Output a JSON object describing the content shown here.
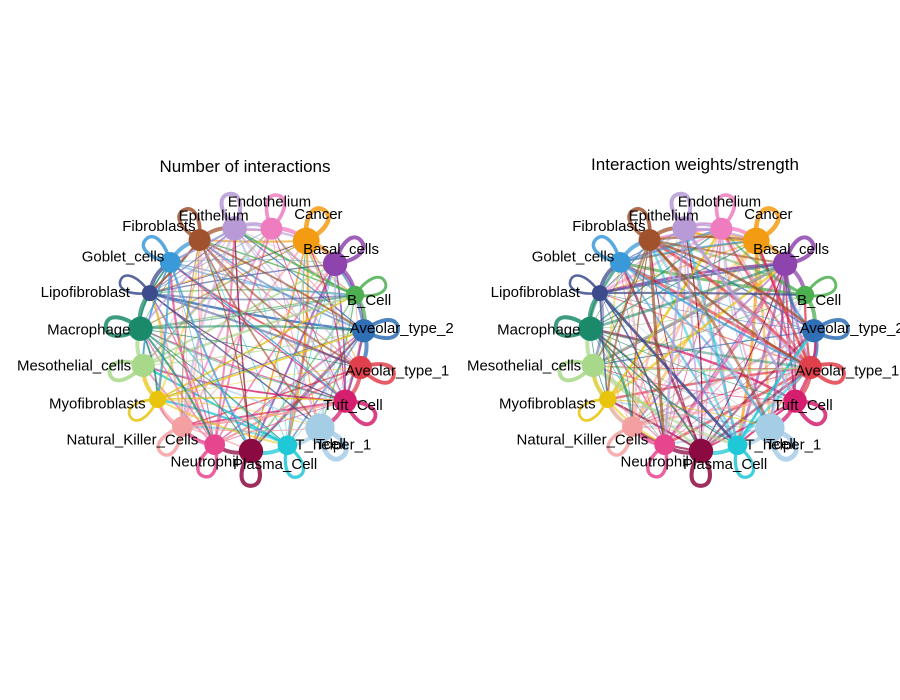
{
  "panels": [
    {
      "title": "Number of interactions"
    },
    {
      "title": "Interaction weights/strength"
    }
  ],
  "nodes": [
    {
      "name": "Endothelium",
      "color": "#f07cc0",
      "size": 1.0
    },
    {
      "name": "Cancer",
      "color": "#f39c12",
      "size": 1.4
    },
    {
      "name": "Basal_cells",
      "color": "#8e44ad",
      "size": 1.2
    },
    {
      "name": "B_Cell",
      "color": "#4caf50",
      "size": 0.7
    },
    {
      "name": "Aveolar_type_2",
      "color": "#2e6fb5",
      "size": 1.1
    },
    {
      "name": "Aveolar_type_1",
      "color": "#e0404c",
      "size": 1.1
    },
    {
      "name": "Tuft_Cell",
      "color": "#d61e6e",
      "size": 1.1
    },
    {
      "name": "Tcell",
      "color": "#a6cde6",
      "size": 1.6
    },
    {
      "name": "T_helper_1",
      "color": "#1ec8d6",
      "size": 0.8
    },
    {
      "name": "Plasma_Cell",
      "color": "#8b0a42",
      "size": 1.2
    },
    {
      "name": "Neutrophil",
      "color": "#e8458f",
      "size": 0.9
    },
    {
      "name": "Natural_Killer_Cells",
      "color": "#f5a0a0",
      "size": 0.9
    },
    {
      "name": "Myofibroblasts",
      "color": "#e8c40c",
      "size": 0.6
    },
    {
      "name": "Mesothelial_cells",
      "color": "#a8d88a",
      "size": 1.1
    },
    {
      "name": "Macrophage",
      "color": "#1a8a6a",
      "size": 1.2
    },
    {
      "name": "Lipofibroblast",
      "color": "#3b4b8c",
      "size": 0.5
    },
    {
      "name": "Goblet_cells",
      "color": "#3a9ad9",
      "size": 0.9
    },
    {
      "name": "Fibroblasts",
      "color": "#a0522d",
      "size": 1.0
    },
    {
      "name": "Epithelium",
      "color": "#b79ad6",
      "size": 1.2
    }
  ]
}
